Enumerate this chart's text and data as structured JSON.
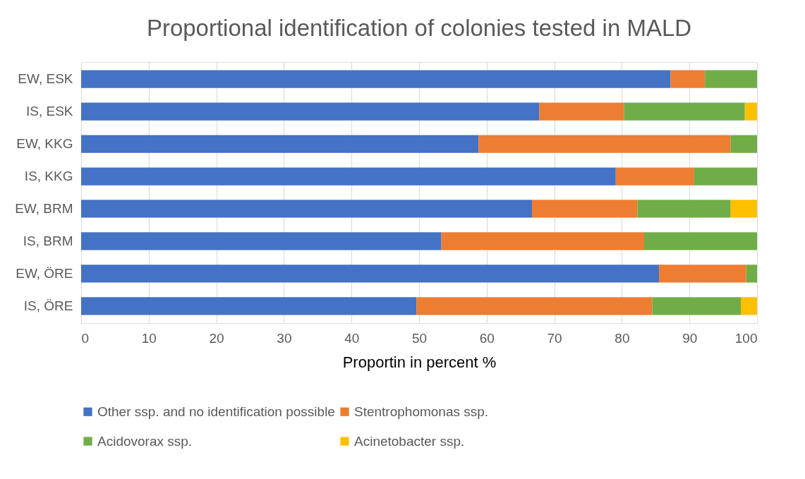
{
  "chart_data": {
    "type": "bar",
    "orientation": "horizontal",
    "stacked": true,
    "title": "Proportional identification of colonies tested in MALD",
    "xlabel": "Proportin in percent %",
    "categories": [
      "EW, ESK",
      "IS, ESK",
      "EW, KKG",
      "IS, KKG",
      "EW, BRM",
      "IS, BRM",
      "EW, ÖRE",
      "IS, ÖRE"
    ],
    "series": [
      {
        "name": "Other ssp. and no identification possible",
        "color": "#4472c4",
        "values": [
          87.2,
          67.8,
          58.8,
          79.1,
          66.7,
          53.3,
          85.5,
          49.6
        ]
      },
      {
        "name": "Stentrophomonas ssp.",
        "color": "#ed7d31",
        "values": [
          5.1,
          12.5,
          37.3,
          11.6,
          15.6,
          30.0,
          12.9,
          34.9
        ]
      },
      {
        "name": "Acidovorax ssp.",
        "color": "#70ad47",
        "values": [
          7.7,
          17.9,
          3.9,
          9.3,
          13.8,
          16.7,
          1.6,
          13.1
        ]
      },
      {
        "name": "Acinetobacter ssp.",
        "color": "#ffc000",
        "values": [
          0,
          1.8,
          0,
          0,
          3.9,
          0,
          0,
          2.4
        ]
      }
    ],
    "xlim": [
      0,
      100
    ],
    "xticks": [
      0,
      10,
      20,
      30,
      40,
      50,
      60,
      70,
      80,
      90,
      100
    ],
    "grid": "x",
    "legend": "bottom"
  }
}
